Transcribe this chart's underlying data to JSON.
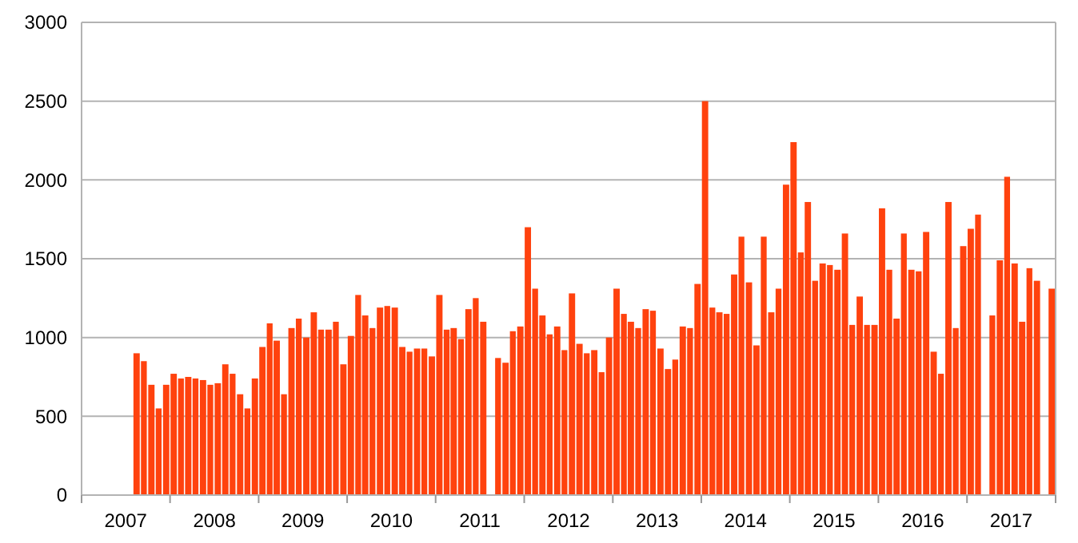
{
  "chart_data": {
    "type": "bar",
    "color": "#ff420e",
    "x": [
      "2007-08-16",
      "2007-09-15",
      "2007-10-16",
      "2007-11-15",
      "2007-12-16",
      "2008-01-16",
      "2008-02-15",
      "2008-03-16",
      "2008-04-15",
      "2008-05-16",
      "2008-06-15",
      "2008-07-16",
      "2008-08-16",
      "2008-09-15",
      "2008-10-16",
      "2008-11-15",
      "2008-12-16",
      "2009-01-16",
      "2009-02-15",
      "2009-03-16",
      "2009-04-15",
      "2009-05-16",
      "2009-06-15",
      "2009-07-16",
      "2009-08-16",
      "2009-09-15",
      "2009-10-16",
      "2009-11-15",
      "2009-12-16",
      "2010-01-16",
      "2010-02-15",
      "2010-03-16",
      "2010-04-15",
      "2010-05-16",
      "2010-06-15",
      "2010-07-16",
      "2010-08-16",
      "2010-09-15",
      "2010-10-16",
      "2010-11-15",
      "2010-12-16",
      "2011-01-16",
      "2011-02-15",
      "2011-03-16",
      "2011-04-15",
      "2011-05-16",
      "2011-06-15",
      "2011-07-16",
      "2011-09-15",
      "2011-10-16",
      "2011-11-15",
      "2011-12-16",
      "2012-01-16",
      "2012-02-15",
      "2012-03-16",
      "2012-04-15",
      "2012-05-16",
      "2012-06-15",
      "2012-07-16",
      "2012-08-16",
      "2012-09-15",
      "2012-10-16",
      "2012-11-15",
      "2012-12-16",
      "2013-01-16",
      "2013-02-15",
      "2013-03-16",
      "2013-04-15",
      "2013-05-16",
      "2013-06-15",
      "2013-07-16",
      "2013-08-16",
      "2013-09-15",
      "2013-10-16",
      "2013-11-15",
      "2013-12-16",
      "2014-01-16",
      "2014-02-15",
      "2014-03-16",
      "2014-04-15",
      "2014-05-16",
      "2014-06-15",
      "2014-07-16",
      "2014-08-16",
      "2014-09-15",
      "2014-10-16",
      "2014-11-15",
      "2014-12-16",
      "2015-01-16",
      "2015-02-15",
      "2015-03-16",
      "2015-04-15",
      "2015-05-16",
      "2015-06-15",
      "2015-07-16",
      "2015-08-16",
      "2015-09-15",
      "2015-10-16",
      "2015-11-15",
      "2015-12-16",
      "2016-01-16",
      "2016-02-15",
      "2016-03-16",
      "2016-04-15",
      "2016-05-16",
      "2016-06-15",
      "2016-07-16",
      "2016-08-16",
      "2016-09-15",
      "2016-10-16",
      "2016-11-15",
      "2016-12-16",
      "2017-01-16",
      "2017-02-15",
      "2017-04-15",
      "2017-05-16",
      "2017-06-15",
      "2017-07-16",
      "2017-08-16",
      "2017-09-15",
      "2017-10-16",
      "2017-12-16"
    ],
    "values": [
      900,
      850,
      700,
      550,
      700,
      770,
      740,
      750,
      740,
      730,
      700,
      710,
      830,
      770,
      640,
      550,
      740,
      940,
      1090,
      980,
      640,
      1060,
      1120,
      1000,
      1160,
      1050,
      1050,
      1100,
      830,
      1010,
      1270,
      1140,
      1060,
      1190,
      1200,
      1190,
      940,
      910,
      930,
      930,
      880,
      1270,
      1050,
      1060,
      990,
      1180,
      1250,
      1100,
      870,
      840,
      1040,
      1070,
      1700,
      1310,
      1140,
      1020,
      1070,
      920,
      1280,
      960,
      900,
      920,
      780,
      1000,
      1310,
      1150,
      1100,
      1060,
      1180,
      1170,
      930,
      800,
      860,
      1070,
      1060,
      1340,
      2500,
      1190,
      1160,
      1150,
      1400,
      1640,
      1350,
      950,
      1640,
      1160,
      1310,
      1970,
      2240,
      1540,
      1860,
      1360,
      1470,
      1460,
      1430,
      1660,
      1080,
      1260,
      1080,
      1080,
      1820,
      1430,
      1120,
      1660,
      1430,
      1420,
      1670,
      910,
      770,
      1860,
      1060,
      1580,
      1690,
      1780,
      1140,
      1490,
      2020,
      1470,
      1100,
      1440,
      1360,
      1310
    ],
    "xlim": [
      "2007-01-01",
      "2018-01-01"
    ],
    "xticks": [
      {
        "value": "2007-07-02",
        "label": "2007"
      },
      {
        "value": "2008-07-02",
        "label": "2008"
      },
      {
        "value": "2009-07-02",
        "label": "2009"
      },
      {
        "value": "2010-07-02",
        "label": "2010"
      },
      {
        "value": "2011-07-02",
        "label": "2011"
      },
      {
        "value": "2012-07-02",
        "label": "2012"
      },
      {
        "value": "2013-07-02",
        "label": "2013"
      },
      {
        "value": "2014-07-02",
        "label": "2014"
      },
      {
        "value": "2015-07-02",
        "label": "2015"
      },
      {
        "value": "2016-07-02",
        "label": "2016"
      },
      {
        "value": "2017-07-02",
        "label": "2017"
      }
    ],
    "ylim": [
      0,
      3000
    ],
    "yticks": [
      0,
      500,
      1000,
      1500,
      2000,
      2500,
      3000
    ],
    "grid": "y"
  }
}
